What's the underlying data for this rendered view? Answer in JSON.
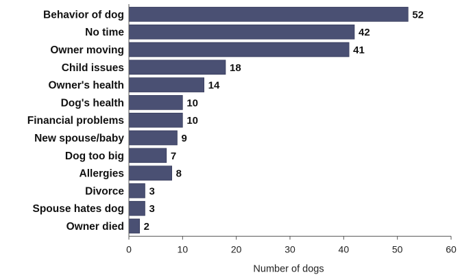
{
  "chart_data": {
    "type": "bar",
    "orientation": "horizontal",
    "categories": [
      "Behavior of dog",
      "No time",
      "Owner moving",
      "Child issues",
      "Owner's health",
      "Dog's health",
      "Financial problems",
      "New spouse/baby",
      "Dog too big",
      "Allergies",
      "Divorce",
      "Spouse hates dog",
      "Owner died"
    ],
    "values": [
      52,
      42,
      41,
      18,
      14,
      10,
      10,
      9,
      7,
      8,
      3,
      3,
      2
    ],
    "data_labels": [
      "52",
      "42",
      "41",
      "18",
      "14",
      "10",
      "10",
      "9",
      "7",
      "8",
      "3",
      "3",
      "2"
    ],
    "xlabel": "Number of dogs",
    "xlim": [
      0,
      60
    ],
    "xticks": [
      0,
      10,
      20,
      30,
      40,
      50,
      60
    ],
    "xtick_labels": [
      "0",
      "10",
      "20",
      "30",
      "40",
      "50",
      "60"
    ],
    "grid": false,
    "legend": "none",
    "bar_color": "#4a5073"
  }
}
